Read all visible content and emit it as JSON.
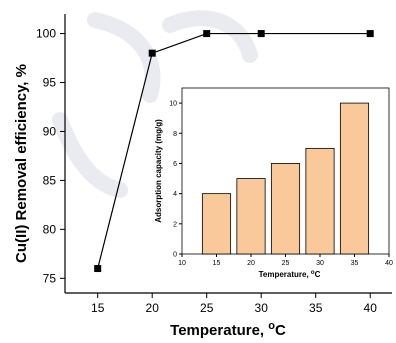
{
  "chart_data": [
    {
      "type": "line",
      "x": [
        15,
        20,
        25,
        30,
        40
      ],
      "y": [
        76,
        98,
        100,
        100,
        100
      ],
      "xlabel": "Temperature, ",
      "xlabel_sup": "o",
      "xlabel_end": "C",
      "ylabel": "Cu(II) Removal efficiency, %",
      "xlim": [
        12,
        42
      ],
      "ylim": [
        73.5,
        102
      ],
      "xticks": [
        15,
        20,
        25,
        30,
        35,
        40
      ],
      "yticks": [
        75,
        80,
        85,
        90,
        95,
        100
      ],
      "marker": "square",
      "color": "#000000",
      "grid": false
    },
    {
      "type": "bar",
      "x": [
        15,
        20,
        25,
        30,
        35
      ],
      "values": [
        4,
        5,
        6,
        7,
        10
      ],
      "xlabel": "Temperature, ",
      "xlabel_sup": "o",
      "xlabel_end": "C",
      "ylabel": "Adsorption capacity (mg/g)",
      "xlim": [
        10,
        40
      ],
      "ylim": [
        0,
        11
      ],
      "xticks": [
        10,
        15,
        20,
        25,
        30,
        35,
        40
      ],
      "yticks": [
        0,
        2,
        4,
        6,
        8,
        10
      ],
      "bar_color": "#f9c99b",
      "edge_color": "#000000",
      "grid": false
    }
  ]
}
